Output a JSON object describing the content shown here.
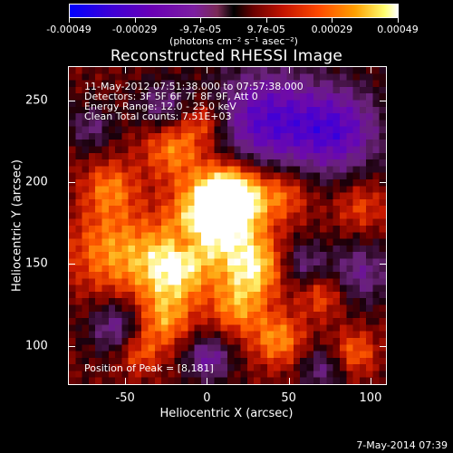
{
  "colorbar": {
    "tick_labels": [
      "-0.00049",
      "-0.00029",
      "-9.7e-05",
      "9.7e-05",
      "0.00029",
      "0.00049"
    ],
    "units": "(photons cm⁻² s⁻¹ asec⁻²)"
  },
  "title": "Reconstructed RHESSI Image",
  "info": {
    "line1": "11-May-2012 07:51:38.000 to 07:57:38.000",
    "line2": "Detectors: 3F 5F 6F 7F 8F 9F, Att 0",
    "line3": "Energy Range: 12.0 - 25.0 keV",
    "line4": "Clean     Total counts: 7.51E+03"
  },
  "peak": "Position of Peak = [8,181]",
  "axes": {
    "x_title": "Heliocentric X (arcsec)",
    "y_title": "Heliocentric Y (arcsec)",
    "x_ticks": [
      "-50",
      "0",
      "50",
      "100"
    ],
    "y_ticks": [
      "250",
      "200",
      "150",
      "100"
    ],
    "x_range": [
      -85,
      110
    ],
    "y_range": [
      76,
      271
    ]
  },
  "timestamp": "7-May-2014 07:39",
  "colors": {
    "background": "#000000",
    "foreground": "#ffffff"
  }
}
